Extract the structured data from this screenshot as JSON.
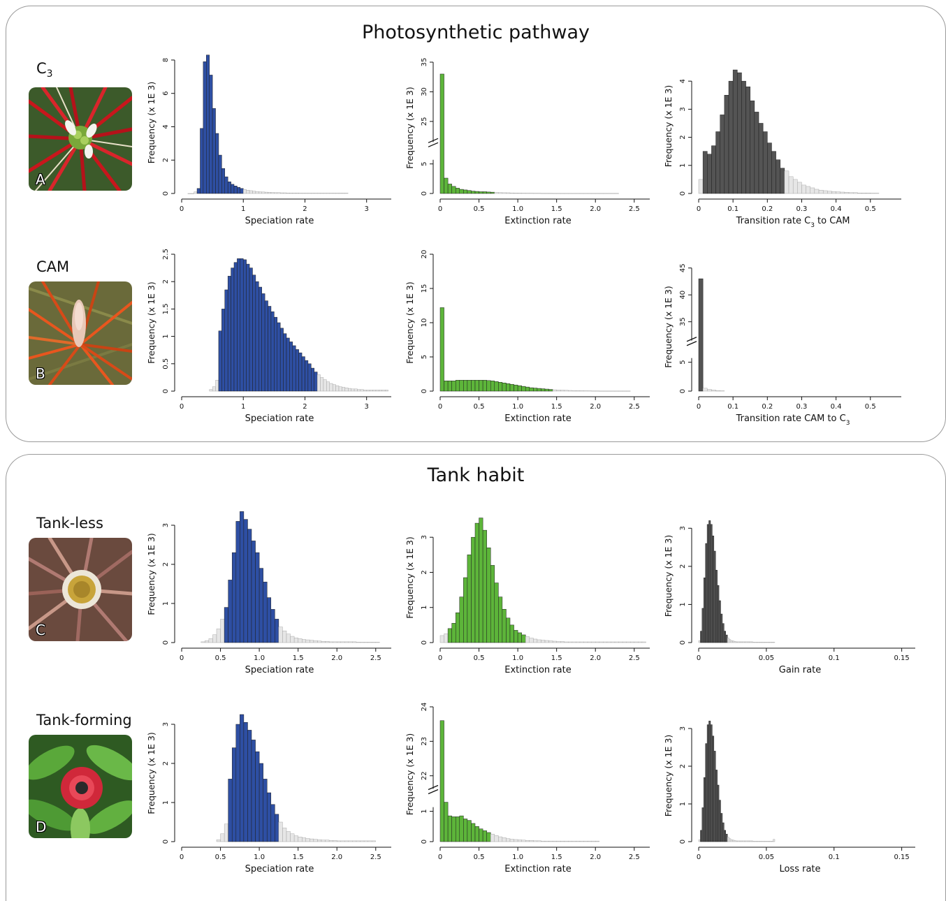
{
  "panels": {
    "top_title": "Photosynthetic pathway",
    "bottom_title": "Tank habit"
  },
  "groups": [
    {
      "label": "C",
      "label_sub": "3",
      "photo_letter": "A"
    },
    {
      "label": "CAM",
      "label_sub": "",
      "photo_letter": "B"
    },
    {
      "label": "Tank-less",
      "label_sub": "",
      "photo_letter": "C"
    },
    {
      "label": "Tank-forming",
      "label_sub": "",
      "photo_letter": "D"
    }
  ],
  "colors": {
    "blue": "#2e4fa3",
    "green": "#5db53a",
    "dark": "#545454",
    "tail": "#e6e6e6",
    "tail_edge": "#9a9a9a",
    "frame": "#9a9a9a"
  },
  "chart_data": [
    {
      "type": "bar",
      "histogram": "speciation",
      "group": "C3",
      "color": "blue",
      "xlabel": "Speciation rate",
      "ylabel": "Frequency (x 1E 3)",
      "xlim": [
        0,
        3.4
      ],
      "xticks": [
        0,
        1,
        2,
        3
      ],
      "xtick_labels": [
        "0",
        "1",
        "2",
        "3"
      ],
      "ylim": [
        0,
        8.5
      ],
      "yticks": [
        0,
        2,
        4,
        6,
        8
      ],
      "ytick_labels": [
        "0",
        "2",
        "4",
        "6",
        "8"
      ],
      "bins": {
        "start": 0.1,
        "width": 0.05,
        "values": [
          0,
          0,
          0.1,
          0.3,
          3.9,
          7.9,
          8.3,
          7.1,
          5.1,
          3.6,
          2.3,
          1.5,
          1.0,
          0.7,
          0.55,
          0.45,
          0.37,
          0.3,
          0.24,
          0.2,
          0.17,
          0.14,
          0.12,
          0.1,
          0.09,
          0.08,
          0.07,
          0.06,
          0.05,
          0.05,
          0.04,
          0.04,
          0.03,
          0.03,
          0.03,
          0.03,
          0.02,
          0.02,
          0.02,
          0.02,
          0.02,
          0.02,
          0.02,
          0.02,
          0.02,
          0.02,
          0.02,
          0.02,
          0.02,
          0.02,
          0.02,
          0.02
        ],
        "hpd_start": 3,
        "hpd_end": 17
      }
    },
    {
      "type": "bar",
      "histogram": "extinction",
      "group": "C3",
      "color": "green",
      "xlabel": "Extinction rate",
      "ylabel": "Frequency (x 1E 3)",
      "xlim": [
        0,
        2.7
      ],
      "xticks": [
        0,
        0.5,
        1.0,
        1.5,
        2.0,
        2.5
      ],
      "xtick_labels": [
        "0",
        "0.5",
        "1.0",
        "1.5",
        "2.0",
        "2.5"
      ],
      "ylim": [
        0,
        8
      ],
      "yticks": [
        0,
        5
      ],
      "ytick_labels": [
        "0",
        "5"
      ],
      "broken_axis": {
        "upper_range": [
          22,
          35
        ],
        "upper_ticks": [
          25,
          30,
          35
        ],
        "upper_tick_labels": [
          "25",
          "30",
          "35"
        ]
      },
      "bins": {
        "start": 0,
        "width": 0.05,
        "values": [
          33,
          2.6,
          1.6,
          1.2,
          0.9,
          0.7,
          0.6,
          0.5,
          0.4,
          0.35,
          0.3,
          0.3,
          0.25,
          0.22,
          0.18,
          0.15,
          0.13,
          0.12,
          0.1,
          0.08,
          0.07,
          0.06,
          0.05,
          0.05,
          0.04,
          0.04,
          0.03,
          0.03,
          0.03,
          0.02,
          0.02,
          0.02,
          0.02,
          0.02,
          0.02,
          0.02,
          0.02,
          0.02,
          0.02,
          0.02,
          0.02,
          0.02,
          0.02,
          0.02,
          0.02,
          0.02
        ],
        "hpd_start": 0,
        "hpd_end": 13
      }
    },
    {
      "type": "bar",
      "histogram": "transition",
      "group": "C3",
      "color": "dark",
      "xlabel": "Transition rate C",
      "xlabel_sub": "3",
      "xlabel_tail": " to CAM",
      "ylabel": "Frequency (x 1E 3)",
      "xlim": [
        0,
        0.59
      ],
      "xticks": [
        0,
        0.1,
        0.2,
        0.3,
        0.4,
        0.5
      ],
      "xtick_labels": [
        "0",
        "0.1",
        "0.2",
        "0.3",
        "0.4",
        "0.5"
      ],
      "ylim": [
        0,
        4.8
      ],
      "yticks": [
        0,
        1,
        2,
        3,
        4
      ],
      "ytick_labels": [
        "0",
        "1",
        "2",
        "3",
        "4"
      ],
      "bins": {
        "start": 0,
        "width": 0.0125,
        "values": [
          0.5,
          1.5,
          1.4,
          1.7,
          2.2,
          2.8,
          3.5,
          4.0,
          4.4,
          4.3,
          4.0,
          3.8,
          3.3,
          2.9,
          2.5,
          2.2,
          1.8,
          1.5,
          1.2,
          0.9,
          0.8,
          0.6,
          0.5,
          0.4,
          0.3,
          0.25,
          0.2,
          0.15,
          0.12,
          0.1,
          0.08,
          0.07,
          0.06,
          0.05,
          0.04,
          0.03,
          0.03,
          0.02,
          0.02,
          0.02,
          0.01,
          0.01
        ],
        "hpd_start": 1,
        "hpd_end": 19
      }
    },
    {
      "type": "bar",
      "histogram": "speciation",
      "group": "CAM",
      "color": "blue",
      "xlabel": "Speciation rate",
      "ylabel": "Frequency (x 1E 3)",
      "xlim": [
        0,
        3.4
      ],
      "xticks": [
        0,
        1,
        2,
        3
      ],
      "xtick_labels": [
        "0",
        "1",
        "2",
        "3"
      ],
      "ylim": [
        0,
        2.5
      ],
      "yticks": [
        0,
        0.5,
        1,
        1.5,
        2,
        2.5
      ],
      "ytick_labels": [
        "0",
        "0.5",
        "1",
        "1.5",
        "2",
        "2.5"
      ],
      "bins": {
        "start": 0.45,
        "width": 0.05,
        "values": [
          0.03,
          0.08,
          0.2,
          1.1,
          1.5,
          1.85,
          2.1,
          2.25,
          2.35,
          2.42,
          2.42,
          2.4,
          2.32,
          2.25,
          2.12,
          2.0,
          1.9,
          1.78,
          1.65,
          1.55,
          1.45,
          1.35,
          1.25,
          1.15,
          1.05,
          0.97,
          0.9,
          0.83,
          0.76,
          0.7,
          0.63,
          0.56,
          0.5,
          0.42,
          0.35,
          0.3,
          0.25,
          0.21,
          0.17,
          0.14,
          0.12,
          0.1,
          0.08,
          0.07,
          0.06,
          0.05,
          0.04,
          0.04,
          0.03,
          0.03,
          0.02,
          0.02,
          0.02,
          0.02,
          0.02,
          0.02,
          0.02,
          0.02
        ],
        "hpd_start": 3,
        "hpd_end": 34
      }
    },
    {
      "type": "bar",
      "histogram": "extinction",
      "group": "CAM",
      "color": "green",
      "xlabel": "Extinction rate",
      "ylabel": "Frequency (x 1E 3)",
      "xlim": [
        0,
        2.7
      ],
      "xticks": [
        0,
        0.5,
        1.0,
        1.5,
        2.0,
        2.5
      ],
      "xtick_labels": [
        "0",
        "0.5",
        "1.0",
        "1.5",
        "2.0",
        "2.5"
      ],
      "ylim": [
        0,
        20
      ],
      "yticks": [
        0,
        5,
        10,
        15,
        20
      ],
      "ytick_labels": [
        "0",
        "5",
        "10",
        "15",
        "20"
      ],
      "bins": {
        "start": 0,
        "width": 0.05,
        "values": [
          12.2,
          1.5,
          1.5,
          1.5,
          1.6,
          1.6,
          1.6,
          1.6,
          1.6,
          1.6,
          1.6,
          1.6,
          1.55,
          1.5,
          1.4,
          1.3,
          1.2,
          1.1,
          1.0,
          0.9,
          0.8,
          0.7,
          0.6,
          0.5,
          0.45,
          0.4,
          0.35,
          0.3,
          0.25,
          0.2,
          0.17,
          0.15,
          0.12,
          0.1,
          0.08,
          0.07,
          0.06,
          0.05,
          0.04,
          0.03,
          0.03,
          0.02,
          0.02,
          0.02,
          0.02,
          0.02,
          0.02,
          0.02,
          0.02
        ],
        "hpd_start": 0,
        "hpd_end": 28
      }
    },
    {
      "type": "bar",
      "histogram": "transition",
      "group": "CAM",
      "color": "dark",
      "xlabel": "Transition rate CAM to C",
      "xlabel_sub": "3",
      "xlabel_tail": "",
      "ylabel": "Frequency (x 1E 3)",
      "xlim": [
        0,
        0.59
      ],
      "xticks": [
        0,
        0.1,
        0.2,
        0.3,
        0.4,
        0.5
      ],
      "xtick_labels": [
        "0",
        "0.1",
        "0.2",
        "0.3",
        "0.4",
        "0.5"
      ],
      "ylim": [
        0,
        8
      ],
      "yticks": [
        0,
        5
      ],
      "ytick_labels": [
        "0",
        "5"
      ],
      "broken_axis": {
        "upper_range": [
          32,
          46
        ],
        "upper_ticks": [
          35,
          40,
          45
        ],
        "upper_tick_labels": [
          "35",
          "40",
          "45"
        ]
      },
      "bins": {
        "start": 0,
        "width": 0.0125,
        "values": [
          43,
          0.5,
          0.3,
          0.2,
          0.1,
          0.05
        ],
        "hpd_start": 0,
        "hpd_end": 0
      }
    },
    {
      "type": "bar",
      "histogram": "speciation",
      "group": "Tank-less",
      "color": "blue",
      "xlabel": "Speciation rate",
      "ylabel": "Frequency (x 1E 3)",
      "xlim": [
        0,
        2.7
      ],
      "xticks": [
        0,
        0.5,
        1.0,
        1.5,
        2.0,
        2.5
      ],
      "xtick_labels": [
        "0",
        "0.5",
        "1.0",
        "1.5",
        "2.0",
        "2.5"
      ],
      "ylim": [
        0,
        3.5
      ],
      "yticks": [
        0,
        1,
        2,
        3
      ],
      "ytick_labels": [
        "0",
        "1",
        "2",
        "3"
      ],
      "bins": {
        "start": 0.25,
        "width": 0.05,
        "values": [
          0.02,
          0.05,
          0.1,
          0.2,
          0.35,
          0.6,
          0.9,
          1.6,
          2.3,
          3.1,
          3.35,
          3.15,
          2.9,
          2.6,
          2.3,
          1.9,
          1.55,
          1.15,
          0.85,
          0.6,
          0.4,
          0.3,
          0.22,
          0.16,
          0.12,
          0.1,
          0.08,
          0.07,
          0.06,
          0.05,
          0.04,
          0.03,
          0.03,
          0.02,
          0.02,
          0.02,
          0.02,
          0.02,
          0.02,
          0.02,
          0.01,
          0.01,
          0.01,
          0.01,
          0.01,
          0.01
        ],
        "hpd_start": 6,
        "hpd_end": 19
      }
    },
    {
      "type": "bar",
      "histogram": "extinction",
      "group": "Tank-less",
      "color": "green",
      "xlabel": "Extinction rate",
      "ylabel": "Frequency (x 1E 3)",
      "xlim": [
        0,
        2.7
      ],
      "xticks": [
        0,
        0.5,
        1.0,
        1.5,
        2.0,
        2.5
      ],
      "xtick_labels": [
        "0",
        "0.5",
        "1.0",
        "1.5",
        "2.0",
        "2.5"
      ],
      "ylim": [
        0,
        3.7
      ],
      "yticks": [
        0,
        1,
        2,
        3
      ],
      "ytick_labels": [
        "0",
        "1",
        "2",
        "3"
      ],
      "bins": {
        "start": 0,
        "width": 0.05,
        "values": [
          0.2,
          0.25,
          0.4,
          0.55,
          0.85,
          1.3,
          1.85,
          2.5,
          3.0,
          3.4,
          3.55,
          3.2,
          2.7,
          2.2,
          1.7,
          1.3,
          0.95,
          0.7,
          0.5,
          0.35,
          0.28,
          0.22,
          0.17,
          0.13,
          0.1,
          0.08,
          0.07,
          0.06,
          0.05,
          0.04,
          0.03,
          0.03,
          0.02,
          0.02,
          0.02,
          0.02,
          0.02,
          0.02,
          0.02,
          0.02,
          0.02,
          0.02,
          0.02,
          0.02,
          0.02,
          0.02,
          0.02,
          0.02,
          0.02,
          0.02,
          0.02,
          0.02,
          0.02
        ],
        "hpd_start": 2,
        "hpd_end": 21
      }
    },
    {
      "type": "bar",
      "histogram": "gain",
      "group": "Tank-less",
      "color": "dark",
      "xlabel": "Gain rate",
      "ylabel": "Frequency (x 1E 3)",
      "xlim": [
        0,
        0.16
      ],
      "xticks": [
        0,
        0.05,
        0.1,
        0.15
      ],
      "xtick_labels": [
        "0",
        "0.05",
        "0.1",
        "0.15"
      ],
      "ylim": [
        0,
        3.5
      ],
      "yticks": [
        0,
        1,
        2,
        3
      ],
      "ytick_labels": [
        "0",
        "1",
        "2",
        "3"
      ],
      "bins": {
        "start": 0,
        "width": 0.00125,
        "values": [
          0.05,
          0.3,
          0.9,
          1.7,
          2.6,
          3.1,
          3.2,
          3.1,
          2.8,
          2.4,
          1.9,
          1.5,
          1.1,
          0.75,
          0.5,
          0.3,
          0.2,
          0.12,
          0.08,
          0.05,
          0.04,
          0.03,
          0.02,
          0.02,
          0.02,
          0.02,
          0.02,
          0.02,
          0.02,
          0.02,
          0.02,
          0.02,
          0.01,
          0.01,
          0.01,
          0.01,
          0.01,
          0.01,
          0.01,
          0.01,
          0.01,
          0.01,
          0.01,
          0.01,
          0.01
        ],
        "hpd_start": 1,
        "hpd_end": 16
      }
    },
    {
      "type": "bar",
      "histogram": "speciation",
      "group": "Tank-forming",
      "color": "blue",
      "xlabel": "Speciation rate",
      "ylabel": "Frequency (x 1E 3)",
      "xlim": [
        0,
        2.7
      ],
      "xticks": [
        0,
        0.5,
        1.0,
        1.5,
        2.0,
        2.5
      ],
      "xtick_labels": [
        "0",
        "0.5",
        "1.0",
        "1.5",
        "2.0",
        "2.5"
      ],
      "ylim": [
        0,
        3.5
      ],
      "yticks": [
        0,
        1,
        2,
        3
      ],
      "ytick_labels": [
        "0",
        "1",
        "2",
        "3"
      ],
      "bins": {
        "start": 0.45,
        "width": 0.05,
        "values": [
          0.05,
          0.2,
          0.45,
          1.6,
          2.4,
          3.0,
          3.25,
          3.05,
          2.85,
          2.6,
          2.3,
          2.0,
          1.6,
          1.25,
          0.95,
          0.7,
          0.5,
          0.35,
          0.26,
          0.2,
          0.15,
          0.12,
          0.1,
          0.08,
          0.07,
          0.06,
          0.05,
          0.04,
          0.04,
          0.03,
          0.03,
          0.02,
          0.02,
          0.02,
          0.02,
          0.02,
          0.02,
          0.02,
          0.02,
          0.02,
          0.02
        ],
        "hpd_start": 3,
        "hpd_end": 15
      }
    },
    {
      "type": "bar",
      "histogram": "extinction",
      "group": "Tank-forming",
      "color": "green",
      "xlabel": "Extinction rate",
      "ylabel": "Frequency (x 1E 3)",
      "xlim": [
        0,
        2.7
      ],
      "xticks": [
        0,
        0.5,
        1.0,
        1.5,
        2.0,
        2.5
      ],
      "xtick_labels": [
        "0",
        "0.5",
        "1.0",
        "1.5",
        "2.0",
        "2.5"
      ],
      "ylim": [
        0,
        1.6
      ],
      "yticks": [
        0,
        1
      ],
      "ytick_labels": [
        "0",
        "1"
      ],
      "broken_axis": {
        "upper_range": [
          21.7,
          24
        ],
        "upper_ticks": [
          22,
          23,
          24
        ],
        "upper_tick_labels": [
          "22",
          "23",
          "24"
        ]
      },
      "bins": {
        "start": 0,
        "width": 0.05,
        "values": [
          23.6,
          1.3,
          0.85,
          0.82,
          0.82,
          0.85,
          0.75,
          0.7,
          0.6,
          0.5,
          0.42,
          0.36,
          0.3,
          0.25,
          0.2,
          0.16,
          0.13,
          0.1,
          0.08,
          0.07,
          0.06,
          0.05,
          0.04,
          0.04,
          0.03,
          0.03,
          0.02,
          0.02,
          0.02,
          0.02,
          0.02,
          0.02,
          0.02,
          0.02,
          0.02,
          0.02,
          0.02,
          0.02,
          0.02,
          0.02,
          0.02
        ],
        "hpd_start": 0,
        "hpd_end": 12
      }
    },
    {
      "type": "bar",
      "histogram": "loss",
      "group": "Tank-forming",
      "color": "dark",
      "xlabel": "Loss rate",
      "ylabel": "Frequency (x 1E 3)",
      "xlim": [
        0,
        0.16
      ],
      "xticks": [
        0,
        0.05,
        0.1,
        0.15
      ],
      "xtick_labels": [
        "0",
        "0.05",
        "0.1",
        "0.15"
      ],
      "ylim": [
        0,
        3.5
      ],
      "yticks": [
        0,
        1,
        2,
        3
      ],
      "ytick_labels": [
        "0",
        "1",
        "2",
        "3"
      ],
      "bins": {
        "start": 0,
        "width": 0.00125,
        "values": [
          0.05,
          0.3,
          0.9,
          1.7,
          2.6,
          3.1,
          3.2,
          3.1,
          2.8,
          2.4,
          1.9,
          1.5,
          1.1,
          0.75,
          0.5,
          0.3,
          0.2,
          0.12,
          0.08,
          0.05,
          0.04,
          0.03,
          0.02,
          0.02,
          0.02,
          0.02,
          0.02,
          0.02,
          0.02,
          0.02,
          0.02,
          0.02,
          0.01,
          0.01,
          0.01,
          0.01,
          0.01,
          0.01,
          0.01,
          0.01,
          0.01,
          0.01,
          0.01,
          0.01,
          0.06
        ],
        "hpd_start": 1,
        "hpd_end": 16
      }
    }
  ]
}
